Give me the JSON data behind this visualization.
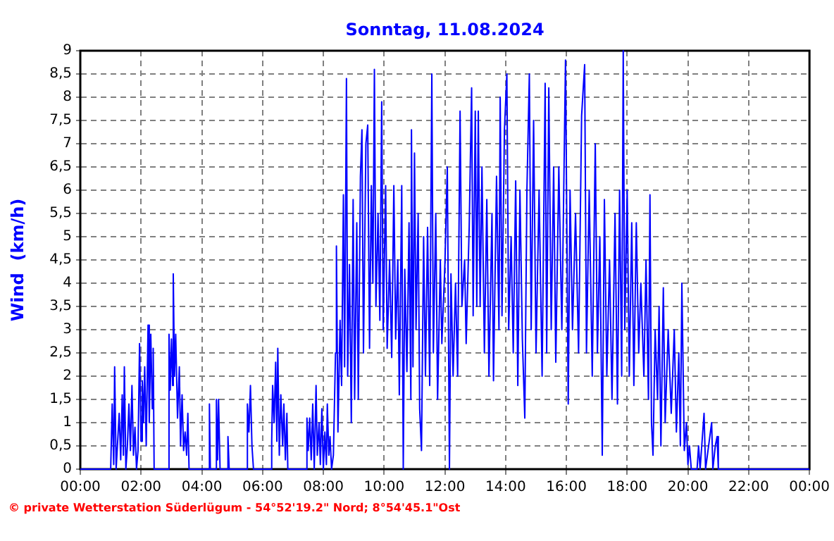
{
  "chart_data": {
    "type": "line",
    "title": "Sonntag, 11.08.2024",
    "ylabel": "Wind  (km/h)",
    "annotations": [
      "© private Wetterstation Süderlügum - 54°52'19.2\" Nord; 8°54'45.1\"Ost"
    ],
    "xlim": [
      0,
      24
    ],
    "xticks": [
      {
        "value": 0,
        "label": "00:00"
      },
      {
        "value": 2,
        "label": "02:00"
      },
      {
        "value": 4,
        "label": "04:00"
      },
      {
        "value": 6,
        "label": "06:00"
      },
      {
        "value": 8,
        "label": "08:00"
      },
      {
        "value": 10,
        "label": "10:00"
      },
      {
        "value": 12,
        "label": "12:00"
      },
      {
        "value": 14,
        "label": "14:00"
      },
      {
        "value": 16,
        "label": "16:00"
      },
      {
        "value": 18,
        "label": "18:00"
      },
      {
        "value": 20,
        "label": "20:00"
      },
      {
        "value": 22,
        "label": "22:00"
      },
      {
        "value": 24,
        "label": "00:00"
      }
    ],
    "ylim": [
      0,
      9
    ],
    "yticks": [
      0,
      {
        "value": 0.5,
        "label": "0,5"
      },
      1,
      {
        "value": 1.5,
        "label": "1,5"
      },
      2,
      {
        "value": 2.5,
        "label": "2,5"
      },
      3,
      {
        "value": 3.5,
        "label": "3,5"
      },
      4,
      {
        "value": 4.5,
        "label": "4,5"
      },
      5,
      {
        "value": 5.5,
        "label": "5,5"
      },
      6,
      {
        "value": 6.5,
        "label": "6,5"
      },
      7,
      {
        "value": 7.5,
        "label": "7,5"
      },
      8,
      {
        "value": 8.5,
        "label": "8,5"
      },
      9
    ],
    "grid": true,
    "legend": false,
    "marker": "none",
    "line_style": "solid",
    "series": [
      {
        "color": "#0000ff",
        "x": [
          0,
          1.0,
          1.05,
          1.1,
          1.13,
          1.18,
          1.28,
          1.33,
          1.38,
          1.42,
          1.45,
          1.5,
          1.55,
          1.6,
          1.65,
          1.7,
          1.75,
          1.8,
          1.85,
          1.9,
          1.95,
          2.0,
          2.04,
          2.08,
          2.12,
          2.17,
          2.23,
          2.27,
          2.32,
          2.37,
          2.4,
          2.43,
          2.9,
          2.92,
          2.96,
          3.0,
          3.04,
          3.06,
          3.1,
          3.14,
          3.2,
          3.26,
          3.3,
          3.35,
          3.4,
          3.45,
          3.5,
          3.54,
          3.58,
          4.22,
          4.25,
          4.28,
          4.46,
          4.48,
          4.52,
          4.55,
          4.6,
          4.84,
          4.86,
          4.9,
          5.48,
          5.5,
          5.55,
          5.6,
          5.65,
          5.7,
          6.28,
          6.3,
          6.33,
          6.38,
          6.43,
          6.47,
          6.5,
          6.55,
          6.6,
          6.66,
          6.7,
          6.75,
          6.8,
          6.83,
          7.44,
          7.46,
          7.5,
          7.55,
          7.6,
          7.65,
          7.7,
          7.76,
          7.8,
          7.86,
          7.9,
          7.95,
          8.0,
          8.05,
          8.1,
          8.13,
          8.18,
          8.22,
          8.27,
          8.33,
          8.4,
          8.43,
          8.48,
          8.55,
          8.6,
          8.66,
          8.7,
          8.76,
          8.8,
          8.86,
          8.92,
          8.98,
          9.03,
          9.1,
          9.15,
          9.22,
          9.27,
          9.32,
          9.4,
          9.46,
          9.52,
          9.58,
          9.63,
          9.68,
          9.73,
          9.8,
          9.86,
          9.92,
          9.97,
          10.05,
          10.1,
          10.18,
          10.25,
          10.32,
          10.38,
          10.45,
          10.5,
          10.58,
          10.63,
          10.68,
          10.75,
          10.82,
          10.88,
          10.9,
          10.95,
          11.0,
          11.05,
          11.12,
          11.17,
          11.23,
          11.3,
          11.36,
          11.43,
          11.5,
          11.57,
          11.62,
          11.7,
          11.76,
          11.85,
          11.9,
          12.0,
          12.08,
          12.15,
          12.2,
          12.27,
          12.35,
          12.42,
          12.5,
          12.56,
          12.65,
          12.7,
          12.8,
          12.88,
          12.93,
          13.0,
          13.05,
          13.1,
          13.16,
          13.22,
          13.3,
          13.38,
          13.45,
          13.55,
          13.6,
          13.7,
          13.78,
          13.82,
          13.88,
          13.96,
          14.04,
          14.1,
          14.18,
          14.25,
          14.33,
          14.4,
          14.47,
          14.55,
          14.63,
          14.7,
          14.78,
          14.84,
          14.92,
          15.0,
          15.1,
          15.2,
          15.3,
          15.35,
          15.42,
          15.5,
          15.58,
          15.65,
          15.75,
          15.85,
          15.97,
          16.06,
          16.12,
          16.2,
          16.3,
          16.4,
          16.5,
          16.6,
          16.66,
          16.75,
          16.85,
          16.95,
          17.02,
          17.1,
          17.18,
          17.25,
          17.33,
          17.42,
          17.5,
          17.6,
          17.68,
          17.75,
          17.82,
          17.87,
          17.92,
          18.0,
          18.07,
          18.15,
          18.22,
          18.3,
          18.38,
          18.45,
          18.55,
          18.62,
          18.7,
          18.75,
          18.8,
          18.85,
          18.92,
          19.0,
          19.05,
          19.11,
          19.19,
          19.25,
          19.35,
          19.45,
          19.55,
          19.62,
          19.7,
          19.75,
          19.8,
          19.88,
          19.95,
          20.0,
          20.05,
          20.11,
          20.3,
          20.35,
          20.4,
          20.53,
          20.58,
          20.7,
          20.78,
          20.82,
          20.9,
          20.96,
          21.0,
          24
        ],
        "values": [
          0,
          0,
          1.4,
          0.1,
          2.2,
          0,
          1.2,
          0.2,
          1.6,
          0.3,
          2.2,
          0,
          0.5,
          1.4,
          0.4,
          1.8,
          0.3,
          0.9,
          0,
          0.4,
          2.7,
          0.6,
          1.9,
          1.0,
          2.2,
          0.5,
          3.1,
          1.0,
          2.9,
          1.3,
          2.6,
          0,
          0,
          2.9,
          1.7,
          2.8,
          1.8,
          4.2,
          2.0,
          2.9,
          1.1,
          2.2,
          0.5,
          1.6,
          0.4,
          0.8,
          0.3,
          1.2,
          0,
          0,
          1.4,
          0,
          0,
          1.5,
          0.2,
          1.5,
          0,
          0,
          0.7,
          0,
          0,
          1.4,
          0.8,
          1.8,
          0.5,
          0,
          0,
          0.6,
          1.8,
          1.0,
          2.3,
          0.6,
          2.6,
          0.3,
          1.6,
          0.5,
          1.4,
          0.2,
          1.2,
          0,
          0,
          1.1,
          0.4,
          1.1,
          0.2,
          1.4,
          0,
          1.8,
          0.3,
          1.0,
          0.1,
          1.3,
          0,
          0.8,
          0.1,
          1.4,
          0.3,
          0.7,
          0,
          0.3,
          2.5,
          4.8,
          0.8,
          3.2,
          1.8,
          5.9,
          2.2,
          8.4,
          2.0,
          4.4,
          1.0,
          5.8,
          1.5,
          5.3,
          1.5,
          6.3,
          7.3,
          2.5,
          7.0,
          7.4,
          2.6,
          6.1,
          4.0,
          8.6,
          3.5,
          5.5,
          3.2,
          7.9,
          3.0,
          6.1,
          2.6,
          4.5,
          2.4,
          6.1,
          2.8,
          4.5,
          1.6,
          6.1,
          0,
          4.3,
          2.1,
          5.3,
          1.5,
          7.3,
          2.2,
          6.8,
          3.0,
          5.5,
          1.3,
          0.4,
          5.0,
          2.0,
          5.2,
          1.8,
          8.5,
          2.5,
          5.5,
          1.5,
          4.5,
          2.7,
          4.4,
          6.5,
          0,
          4.2,
          2.0,
          4.0,
          2.0,
          7.7,
          3.5,
          4.5,
          2.7,
          5.2,
          8.2,
          3.3,
          7.7,
          3.5,
          7.7,
          3.5,
          6.5,
          2.5,
          5.8,
          2.0,
          5.5,
          1.9,
          6.3,
          3.0,
          8.0,
          3.3,
          7.3,
          8.5,
          3.0,
          5.0,
          2.5,
          6.2,
          1.8,
          6.0,
          2.8,
          1.1,
          6.0,
          8.5,
          3.0,
          7.5,
          2.5,
          6.0,
          2.0,
          8.3,
          2.5,
          8.2,
          3.0,
          6.5,
          2.3,
          6.5,
          3.0,
          8.8,
          1.4,
          6.0,
          3.0,
          5.5,
          2.5,
          7.6,
          8.7,
          2.5,
          6.0,
          2.0,
          7.0,
          2.5,
          5.0,
          0.3,
          5.8,
          2.0,
          4.5,
          1.5,
          5.5,
          1.4,
          6.0,
          2.0,
          9.0,
          3.0,
          6.0,
          2.0,
          5.3,
          1.8,
          5.3,
          2.5,
          4.0,
          2.0,
          4.5,
          1.5,
          5.9,
          1.0,
          0.3,
          3.0,
          1.5,
          3.5,
          0.5,
          3.9,
          1.0,
          3.0,
          1.2,
          3.0,
          0.8,
          2.5,
          0.5,
          4.0,
          0.4,
          1.0,
          0.1,
          0.5,
          0,
          0,
          0.5,
          0,
          1.2,
          0,
          0.6,
          1.0,
          0,
          0.5,
          0.7,
          0,
          0
        ]
      }
    ]
  }
}
